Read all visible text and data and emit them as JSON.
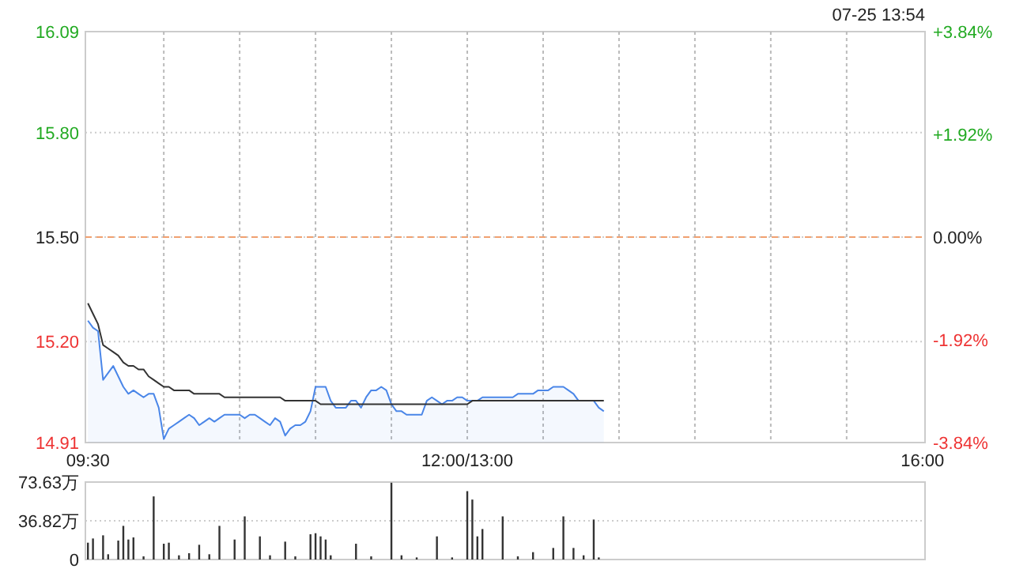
{
  "chart_data": [
    {
      "type": "line",
      "annotations": [
        "07-25 13:54"
      ],
      "categories": [
        "09:30",
        null,
        null,
        null,
        null,
        null,
        null,
        null,
        null,
        null,
        null,
        null,
        null,
        null,
        null,
        null,
        null,
        null,
        null,
        null,
        null,
        null,
        null,
        null,
        null,
        null,
        null,
        null,
        null,
        null,
        null,
        null,
        null,
        null,
        null,
        null,
        null,
        null,
        null,
        null,
        null,
        null,
        null,
        null,
        null,
        null,
        null,
        null,
        null,
        null,
        null,
        null,
        null,
        null,
        null,
        null,
        null,
        null,
        null,
        null,
        null,
        null,
        null,
        null,
        null,
        null,
        null,
        null,
        null,
        null,
        null,
        null,
        null,
        null,
        null,
        "12:00/13:00",
        null,
        null,
        null,
        null,
        null,
        null,
        null,
        null,
        null,
        null,
        null,
        null,
        null,
        null,
        null,
        null,
        null,
        null,
        null,
        null,
        null,
        null,
        null,
        null,
        null,
        null,
        null,
        null,
        null,
        null,
        null,
        null,
        null,
        null,
        null,
        null,
        null,
        null,
        null,
        null,
        null,
        null,
        null,
        null,
        null,
        null,
        null,
        null,
        null,
        null,
        null,
        null,
        null,
        null,
        null,
        null,
        null,
        null,
        null,
        null,
        null,
        null,
        null,
        null,
        null,
        null,
        null,
        null,
        null,
        null,
        null,
        null,
        null,
        null,
        null,
        null,
        null,
        null,
        null,
        null,
        null,
        null,
        null,
        null,
        null,
        null,
        null,
        null,
        null,
        "16:00"
      ],
      "ylim": [
        14.91,
        16.09
      ],
      "yticks": [
        14.91,
        {
          "value": 15.2,
          "label": "15.20"
        },
        {
          "value": 15.5,
          "label": "15.50"
        },
        {
          "value": 15.8,
          "label": "15.80"
        },
        16.09
      ],
      "y2lim": [
        -3.84,
        3.84
      ],
      "y2ticks": [
        {
          "value": -3.84,
          "label": "-3.84%"
        },
        {
          "value": -1.92,
          "label": "-1.92%"
        },
        {
          "value": 0,
          "label": "0.00%"
        },
        {
          "value": 1.92,
          "label": "+1.92%"
        },
        {
          "value": 3.84,
          "label": "+3.84%"
        }
      ],
      "grid": true,
      "ref_lines": [
        {
          "axis": "y",
          "value": 15.5,
          "color": "#f0a070",
          "line_style": "dashed"
        }
      ],
      "series": [
        {
          "type": "area",
          "color": "#4a86e8",
          "values": [
            15.26,
            15.24,
            15.23,
            15.09,
            15.11,
            15.13,
            15.1,
            15.07,
            15.05,
            15.06,
            15.05,
            15.04,
            15.05,
            15.05,
            15.01,
            14.92,
            14.95,
            14.96,
            14.97,
            14.98,
            14.99,
            14.98,
            14.96,
            14.97,
            14.98,
            14.97,
            14.98,
            14.99,
            14.99,
            14.99,
            14.99,
            14.98,
            14.99,
            14.99,
            14.98,
            14.97,
            14.96,
            14.98,
            14.97,
            14.93,
            14.95,
            14.96,
            14.96,
            14.97,
            15.0,
            15.07,
            15.07,
            15.07,
            15.03,
            15.01,
            15.01,
            15.01,
            15.03,
            15.03,
            15.01,
            15.04,
            15.06,
            15.06,
            15.07,
            15.06,
            15.02,
            15.0,
            15.0,
            14.99,
            14.99,
            14.99,
            14.99,
            15.03,
            15.04,
            15.03,
            15.02,
            15.03,
            15.03,
            15.04,
            15.04,
            15.03,
            15.03,
            15.03,
            15.04,
            15.04,
            15.04,
            15.04,
            15.04,
            15.04,
            15.04,
            15.05,
            15.05,
            15.05,
            15.05,
            15.06,
            15.06,
            15.06,
            15.07,
            15.07,
            15.07,
            15.06,
            15.05,
            15.03,
            15.03,
            15.03,
            15.03,
            15.01,
            15.0,
            null,
            null,
            null,
            null,
            null,
            null,
            null,
            null,
            null,
            null,
            null,
            null,
            null,
            null,
            null,
            null,
            null,
            null,
            null,
            null,
            null,
            null,
            null,
            null,
            null,
            null,
            null,
            null,
            null,
            null,
            null,
            null,
            null,
            null,
            null,
            null,
            null,
            null,
            null,
            null,
            null,
            null,
            null,
            null,
            null,
            null,
            null,
            null,
            null,
            null,
            null,
            null,
            null,
            null,
            null,
            null,
            null,
            null,
            null,
            null,
            null,
            null,
            null
          ]
        },
        {
          "type": "line",
          "color": "#333333",
          "values": [
            15.31,
            15.28,
            15.25,
            15.19,
            15.18,
            15.17,
            15.16,
            15.14,
            15.13,
            15.13,
            15.12,
            15.12,
            15.1,
            15.09,
            15.08,
            15.07,
            15.07,
            15.06,
            15.06,
            15.06,
            15.06,
            15.05,
            15.05,
            15.05,
            15.05,
            15.05,
            15.05,
            15.04,
            15.04,
            15.04,
            15.04,
            15.04,
            15.04,
            15.04,
            15.04,
            15.04,
            15.04,
            15.04,
            15.04,
            15.03,
            15.03,
            15.03,
            15.03,
            15.03,
            15.03,
            15.03,
            15.02,
            15.02,
            15.02,
            15.02,
            15.02,
            15.02,
            15.02,
            15.02,
            15.02,
            15.02,
            15.02,
            15.02,
            15.02,
            15.02,
            15.02,
            15.02,
            15.02,
            15.02,
            15.02,
            15.02,
            15.02,
            15.02,
            15.02,
            15.02,
            15.02,
            15.02,
            15.02,
            15.02,
            15.02,
            15.02,
            15.03,
            15.03,
            15.03,
            15.03,
            15.03,
            15.03,
            15.03,
            15.03,
            15.03,
            15.03,
            15.03,
            15.03,
            15.03,
            15.03,
            15.03,
            15.03,
            15.03,
            15.03,
            15.03,
            15.03,
            15.03,
            15.03,
            15.03,
            15.03,
            15.03,
            15.03,
            15.03,
            null,
            null,
            null,
            null,
            null,
            null,
            null,
            null,
            null,
            null,
            null,
            null,
            null,
            null,
            null,
            null,
            null,
            null,
            null,
            null,
            null,
            null,
            null,
            null,
            null,
            null,
            null,
            null,
            null,
            null,
            null,
            null,
            null,
            null,
            null,
            null,
            null,
            null,
            null,
            null,
            null,
            null,
            null,
            null,
            null,
            null,
            null,
            null,
            null,
            null,
            null,
            null,
            null,
            null,
            null,
            null,
            null,
            null,
            null,
            null,
            null,
            null,
            null
          ]
        }
      ]
    },
    {
      "type": "bar",
      "color": "#333333",
      "categories": [
        null,
        null,
        null,
        null,
        null,
        null,
        null,
        null,
        null,
        null,
        null,
        null,
        null,
        null,
        null,
        null,
        null,
        null,
        null,
        null,
        null,
        null,
        null,
        null,
        null,
        null,
        null,
        null,
        null,
        null,
        null,
        null,
        null,
        null,
        null,
        null,
        null,
        null,
        null,
        null,
        null,
        null,
        null,
        null,
        null,
        null,
        null,
        null,
        null,
        null,
        null,
        null,
        null,
        null,
        null,
        null,
        null,
        null,
        null,
        null,
        null,
        null,
        null,
        null,
        null,
        null,
        null,
        null,
        null,
        null,
        null,
        null,
        null,
        null,
        null,
        null,
        null,
        null,
        null,
        null,
        null,
        null,
        null,
        null,
        null,
        null,
        null,
        null,
        null,
        null,
        null,
        null,
        null,
        null,
        null,
        null,
        null,
        null,
        null,
        null,
        null,
        null,
        null,
        null,
        null,
        null,
        null,
        null,
        null,
        null,
        null,
        null,
        null,
        null,
        null,
        null,
        null,
        null,
        null,
        null,
        null,
        null,
        null,
        null,
        null,
        null,
        null,
        null,
        null,
        null,
        null,
        null,
        null,
        null,
        null,
        null,
        null,
        null,
        null,
        null,
        null,
        null,
        null,
        null,
        null,
        null,
        null,
        null,
        null,
        null,
        null,
        null,
        null,
        null,
        null,
        null,
        null,
        null,
        null,
        null,
        null,
        null,
        null,
        null,
        null,
        null
      ],
      "ylim": [
        0,
        73.63
      ],
      "yticks": [
        0,
        {
          "value": 36.82,
          "label": "36.82万"
        },
        {
          "value": 73.63,
          "label": "73.63万"
        }
      ],
      "tick_labels": "y",
      "grid": "y",
      "values": [
        16,
        20,
        null,
        23,
        5,
        null,
        18,
        32,
        19,
        21,
        null,
        3,
        null,
        60,
        null,
        15,
        16,
        null,
        4,
        null,
        6,
        null,
        14,
        null,
        5,
        null,
        32,
        null,
        null,
        19,
        null,
        41,
        null,
        null,
        22,
        null,
        4,
        null,
        null,
        17,
        null,
        3,
        null,
        null,
        24,
        25,
        22,
        19,
        4,
        null,
        null,
        null,
        null,
        15,
        null,
        null,
        3,
        null,
        null,
        null,
        73,
        null,
        4,
        null,
        null,
        2,
        null,
        null,
        null,
        22,
        null,
        null,
        2,
        null,
        null,
        65,
        57,
        22,
        29,
        null,
        null,
        null,
        41,
        null,
        null,
        3,
        null,
        null,
        7,
        null,
        null,
        null,
        11,
        null,
        41,
        null,
        11,
        null,
        4,
        null,
        38,
        2,
        null,
        null,
        null,
        null,
        null,
        null,
        null,
        null,
        null,
        null,
        null,
        null,
        null,
        null,
        null,
        null,
        null,
        null,
        null,
        null,
        null,
        null,
        null,
        null,
        null,
        null,
        null,
        null,
        null,
        null,
        null,
        null,
        null,
        null,
        null,
        null,
        null,
        null,
        null,
        null,
        null,
        null,
        null,
        null,
        null,
        null,
        null,
        null,
        null,
        null,
        null,
        null,
        null,
        null,
        null,
        null,
        null,
        null,
        null,
        null,
        null,
        null,
        null,
        null
      ]
    }
  ]
}
